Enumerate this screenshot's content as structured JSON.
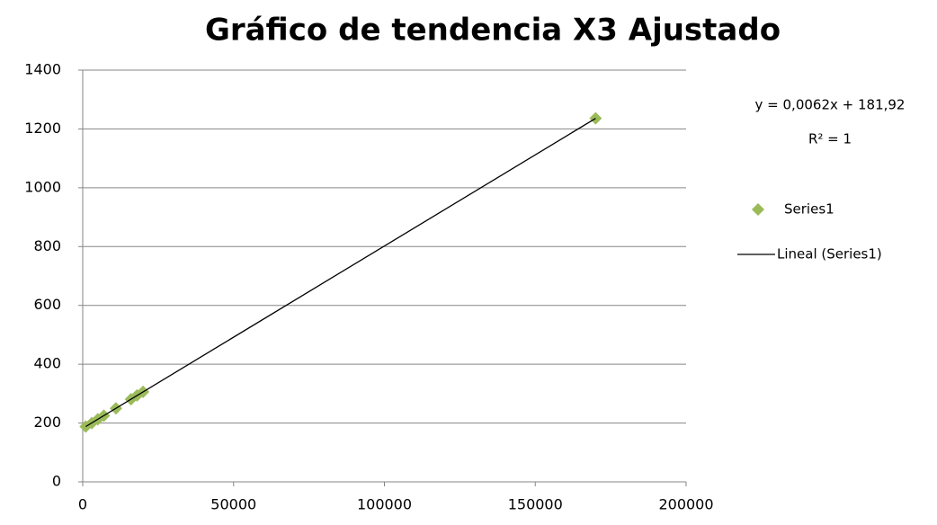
{
  "chart_data": {
    "type": "scatter",
    "title": "Gráfico de tendencia X3 Ajustado",
    "annotations": [
      "y = 0,0062x + 181,92",
      "R² = 1"
    ],
    "series": [
      {
        "name": "Series1",
        "color": "#9bbb59",
        "mode": "markers",
        "x": [
          1000,
          3000,
          5000,
          7000,
          11000,
          16000,
          18000,
          20000,
          170000
        ],
        "values": [
          188,
          200,
          213,
          225,
          250,
          281,
          294,
          306,
          1236
        ]
      },
      {
        "name": "Lineal (Series1)",
        "color": "#000000",
        "mode": "line",
        "x": [
          1000,
          170000
        ],
        "values": [
          188,
          1236
        ]
      }
    ],
    "xlim": [
      0,
      200000
    ],
    "xticks": [
      0,
      50000,
      100000,
      150000,
      200000
    ],
    "ylim": [
      0,
      1400
    ],
    "yticks": [
      0,
      200,
      400,
      600,
      800,
      1000,
      1200,
      1400
    ],
    "grid": true,
    "legend": "right"
  }
}
